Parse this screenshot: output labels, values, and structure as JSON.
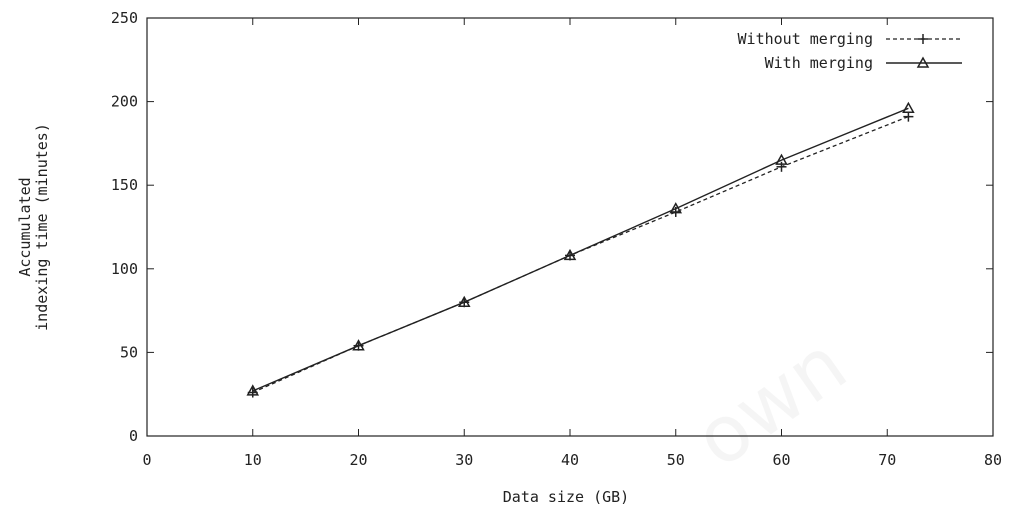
{
  "chart_data": {
    "type": "line",
    "title": "",
    "xlabel": "Data size (GB)",
    "ylabel_lines": [
      "Accumulated",
      "indexing time (minutes)"
    ],
    "xlim": [
      0,
      80
    ],
    "ylim": [
      0,
      250
    ],
    "xticks": [
      0,
      10,
      20,
      30,
      40,
      50,
      60,
      70,
      80
    ],
    "yticks": [
      0,
      50,
      100,
      150,
      200,
      250
    ],
    "grid": false,
    "legend_position": "top-right",
    "series": [
      {
        "name": "Without merging",
        "line_style": "dashed",
        "marker": "plus",
        "x": [
          10,
          20,
          30,
          40,
          50,
          60,
          72
        ],
        "y": [
          26,
          54,
          80,
          108,
          134,
          161,
          191
        ]
      },
      {
        "name": "With merging",
        "line_style": "solid",
        "marker": "triangle",
        "x": [
          10,
          20,
          30,
          40,
          50,
          60,
          72
        ],
        "y": [
          27,
          54,
          80,
          108,
          136,
          165,
          196
        ]
      }
    ]
  }
}
